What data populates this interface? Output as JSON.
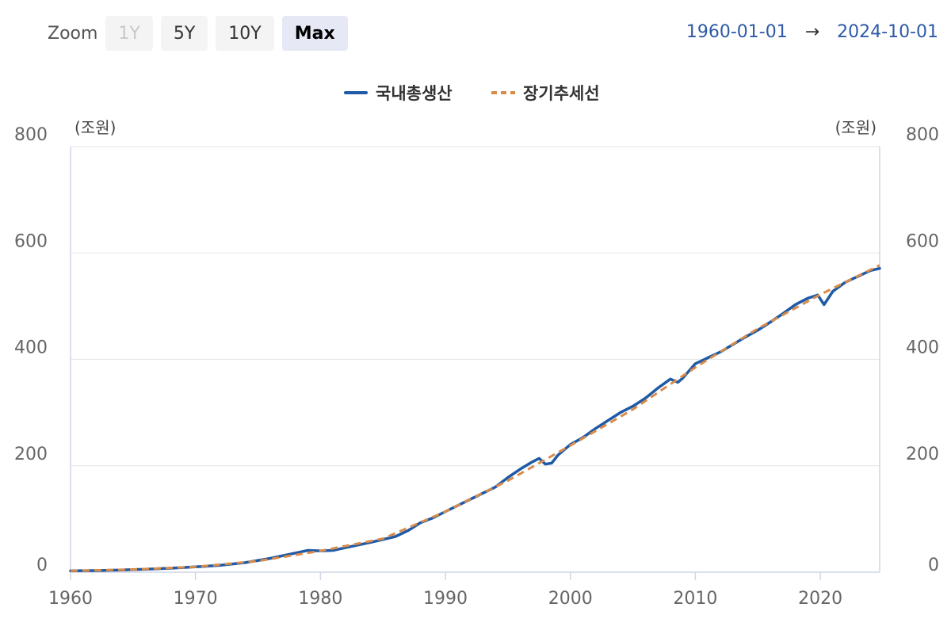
{
  "toolbar": {
    "zoom_label": "Zoom",
    "buttons": [
      {
        "label": "1Y",
        "state": "disabled"
      },
      {
        "label": "5Y",
        "state": "normal"
      },
      {
        "label": "10Y",
        "state": "normal"
      },
      {
        "label": "Max",
        "state": "active"
      }
    ],
    "range_start": "1960-01-01",
    "range_arrow": "→",
    "range_end": "2024-10-01"
  },
  "colors": {
    "gdp_line": "#1f5aa6",
    "trend_line": "#d98c4a",
    "axis": "#cfd6e6",
    "grid": "#e6e6e6",
    "tick_text": "#666666"
  },
  "chart_data": {
    "type": "line",
    "title": "",
    "legend": {
      "position": "top-center",
      "items": [
        "국내총생산",
        "장기추세선"
      ]
    },
    "yunit_left": "(조원)",
    "yunit_right": "(조원)",
    "ylim": [
      0,
      800
    ],
    "yticks": [
      0,
      200,
      400,
      600,
      800
    ],
    "xlim": [
      1960,
      2024.75
    ],
    "xticks": [
      1960,
      1970,
      1980,
      1990,
      2000,
      2010,
      2020
    ],
    "grid": "horizontal",
    "series": [
      {
        "name": "국내총생산",
        "style": "solid",
        "points": [
          [
            1960,
            2.5
          ],
          [
            1962,
            3
          ],
          [
            1964,
            4
          ],
          [
            1966,
            5.5
          ],
          [
            1968,
            7.5
          ],
          [
            1970,
            10
          ],
          [
            1972,
            13
          ],
          [
            1974,
            18
          ],
          [
            1976,
            26
          ],
          [
            1978,
            36
          ],
          [
            1979,
            41
          ],
          [
            1980,
            40
          ],
          [
            1981,
            41
          ],
          [
            1982,
            46
          ],
          [
            1984,
            56
          ],
          [
            1986,
            67
          ],
          [
            1987,
            78
          ],
          [
            1988,
            93
          ],
          [
            1989,
            102
          ],
          [
            1990,
            114
          ],
          [
            1992,
            137
          ],
          [
            1994,
            160
          ],
          [
            1995,
            178
          ],
          [
            1996,
            194
          ],
          [
            1997,
            208
          ],
          [
            1997.5,
            214
          ],
          [
            1998,
            203
          ],
          [
            1998.5,
            205
          ],
          [
            1999,
            220
          ],
          [
            2000,
            240
          ],
          [
            2001,
            253
          ],
          [
            2002,
            270
          ],
          [
            2003,
            285
          ],
          [
            2004,
            300
          ],
          [
            2005,
            312
          ],
          [
            2006,
            327
          ],
          [
            2007,
            346
          ],
          [
            2008,
            363
          ],
          [
            2008.6,
            357
          ],
          [
            2009,
            365
          ],
          [
            2010,
            392
          ],
          [
            2011,
            403
          ],
          [
            2012,
            414
          ],
          [
            2013,
            428
          ],
          [
            2014,
            442
          ],
          [
            2015,
            455
          ],
          [
            2016,
            470
          ],
          [
            2017,
            486
          ],
          [
            2018,
            503
          ],
          [
            2019,
            515
          ],
          [
            2019.8,
            521
          ],
          [
            2020.3,
            503
          ],
          [
            2021,
            528
          ],
          [
            2022,
            545
          ],
          [
            2023,
            556
          ],
          [
            2024,
            567
          ],
          [
            2024.75,
            571
          ]
        ]
      },
      {
        "name": "장기추세선",
        "style": "dashed",
        "points": [
          [
            1960,
            2.5
          ],
          [
            1965,
            5
          ],
          [
            1970,
            10
          ],
          [
            1975,
            21
          ],
          [
            1980,
            40
          ],
          [
            1985,
            63
          ],
          [
            1990,
            114
          ],
          [
            1995,
            172
          ],
          [
            2000,
            238
          ],
          [
            2005,
            306
          ],
          [
            2010,
            385
          ],
          [
            2015,
            458
          ],
          [
            2020,
            522
          ],
          [
            2024.75,
            577
          ]
        ]
      }
    ]
  }
}
